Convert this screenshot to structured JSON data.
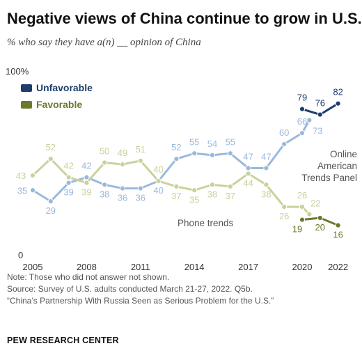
{
  "header": {
    "title": "Negative views of China continue to grow in U.S.",
    "subtitle": "% who say they have a(n) __ opinion of China"
  },
  "chart_data": {
    "type": "line",
    "title": "Negative views of China continue to grow in U.S.",
    "subtitle": "% who say they have a(n) __ opinion of China",
    "ylim": [
      0,
      100
    ],
    "y_tick_labels": [
      "100%",
      "0"
    ],
    "x_ticks": [
      "2005",
      "2008",
      "2011",
      "2014",
      "2017",
      "2020",
      "2022"
    ],
    "legend": {
      "placement": "top-left",
      "entries": [
        {
          "label": "Unfavorable",
          "color": "#1f3d6b"
        },
        {
          "label": "Favorable",
          "color": "#6b7a2a"
        }
      ]
    },
    "annotations": {
      "phone": "Phone trends",
      "online": [
        "Online",
        "American",
        "Trends Panel"
      ]
    },
    "series": [
      {
        "name": "Unfavorable",
        "mode": "Phone trends",
        "color": "#9bb8dc",
        "points": [
          [
            2005,
            35
          ],
          [
            2006,
            29
          ],
          [
            2007,
            39
          ],
          [
            2008,
            42
          ],
          [
            2009,
            38
          ],
          [
            2010,
            36
          ],
          [
            2011,
            36
          ],
          [
            2012,
            40
          ],
          [
            2013,
            52
          ],
          [
            2014,
            55
          ],
          [
            2015,
            54
          ],
          [
            2016,
            55
          ],
          [
            2017,
            47
          ],
          [
            2018,
            47
          ],
          [
            2019,
            60
          ],
          [
            2020,
            66
          ],
          [
            2020.4,
            73
          ]
        ]
      },
      {
        "name": "Unfavorable",
        "mode": "Online American Trends Panel",
        "color": "#1f3d6b",
        "points": [
          [
            2020,
            79
          ],
          [
            2021,
            76
          ],
          [
            2022,
            82
          ]
        ]
      },
      {
        "name": "Favorable",
        "mode": "Phone trends",
        "color": "#c8d39a",
        "points": [
          [
            2005,
            43
          ],
          [
            2006,
            52
          ],
          [
            2007,
            42
          ],
          [
            2008,
            39
          ],
          [
            2009,
            50
          ],
          [
            2010,
            49
          ],
          [
            2011,
            51
          ],
          [
            2012,
            40
          ],
          [
            2013,
            37
          ],
          [
            2014,
            35
          ],
          [
            2015,
            38
          ],
          [
            2016,
            37
          ],
          [
            2017,
            44
          ],
          [
            2018,
            38
          ],
          [
            2019,
            26
          ],
          [
            2020,
            26
          ],
          [
            2020.4,
            22
          ]
        ]
      },
      {
        "name": "Favorable",
        "mode": "Online American Trends Panel",
        "color": "#6b7a2a",
        "points": [
          [
            2020,
            19
          ],
          [
            2021,
            20
          ],
          [
            2022,
            16
          ]
        ]
      }
    ]
  },
  "footer": {
    "note": "Note: Those who did not answer not shown.",
    "source": "Source: Survey of U.S. adults conducted March 21-27, 2022. Q5b.",
    "report": "“China’s Partnership With Russia Seen as Serious Problem for the U.S.”",
    "org": "PEW RESEARCH CENTER"
  }
}
